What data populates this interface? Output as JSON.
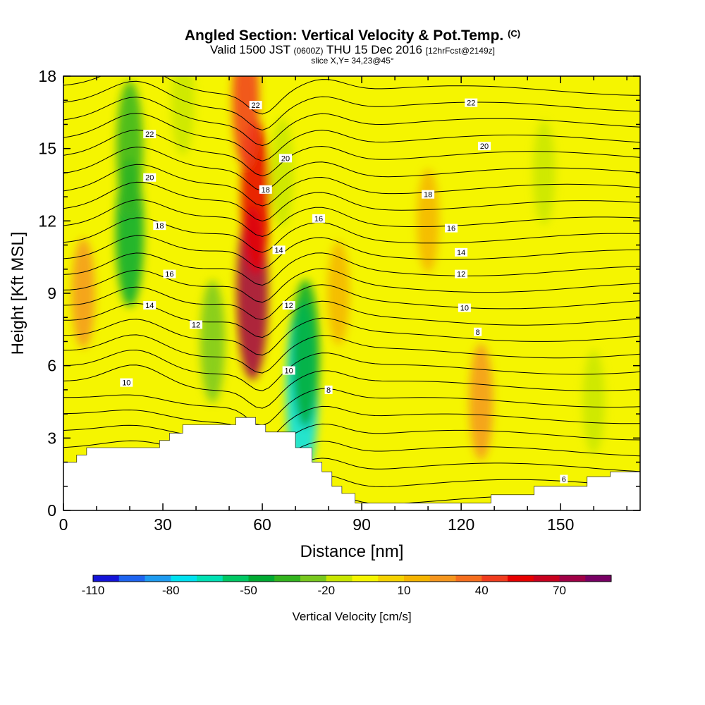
{
  "title": {
    "main": "Angled Section: Vertical Velocity & Pot.Temp.",
    "unit": "(C)",
    "valid_prefix": "Valid 1500 JST",
    "valid_utc": "(0600Z)",
    "valid_date": "THU 15 Dec 2016",
    "forecast": "[12hrFcst@2149z]",
    "slice": "slice X,Y= 34,23@45°"
  },
  "chart_data": {
    "type": "heatmap",
    "title": "Angled Section: Vertical Velocity & Pot.Temp. (C)",
    "xlabel": "Distance [nm]",
    "ylabel": "Height [Kft MSL]",
    "xlim": [
      0,
      174
    ],
    "ylim": [
      0,
      18
    ],
    "x_ticks": [
      0,
      30,
      60,
      90,
      120,
      150
    ],
    "y_ticks": [
      0,
      3,
      6,
      9,
      12,
      15,
      18
    ],
    "colorbar": {
      "label": "Vertical Velocity [cm/s]",
      "min": -110,
      "step": 10,
      "tick_labels": [
        -110,
        -80,
        -50,
        -20,
        10,
        40,
        70
      ],
      "colors": [
        "#1414d8",
        "#1e64f0",
        "#1e9bf0",
        "#00e1f0",
        "#00e1b4",
        "#00c864",
        "#00aa32",
        "#32b41e",
        "#78c81e",
        "#c8e600",
        "#f5f500",
        "#f5d200",
        "#f5b400",
        "#f5961e",
        "#f56e1e",
        "#f03c1e",
        "#e60000",
        "#c8001e",
        "#a00046",
        "#780064"
      ]
    },
    "terrain_kft": [
      [
        0,
        2
      ],
      [
        4,
        2
      ],
      [
        4,
        2.3
      ],
      [
        7,
        2.3
      ],
      [
        7,
        2.6
      ],
      [
        24,
        2.6
      ],
      [
        24,
        2.6
      ],
      [
        29,
        2.6
      ],
      [
        29,
        2.9
      ],
      [
        32,
        2.9
      ],
      [
        32,
        3.2
      ],
      [
        36,
        3.2
      ],
      [
        36,
        3.55
      ],
      [
        52,
        3.55
      ],
      [
        52,
        3.85
      ],
      [
        58,
        3.85
      ],
      [
        58,
        3.55
      ],
      [
        61,
        3.55
      ],
      [
        61,
        3.25
      ],
      [
        70,
        3.25
      ],
      [
        70,
        2.6
      ],
      [
        75,
        2.6
      ],
      [
        75,
        2.0
      ],
      [
        78,
        2.0
      ],
      [
        78,
        1.6
      ],
      [
        81,
        1.6
      ],
      [
        81,
        1.0
      ],
      [
        84,
        1.0
      ],
      [
        84,
        0.7
      ],
      [
        88,
        0.7
      ],
      [
        88,
        0.3
      ],
      [
        129,
        0.3
      ],
      [
        129,
        0.65
      ],
      [
        142,
        0.65
      ],
      [
        142,
        1.0
      ],
      [
        158,
        1.0
      ],
      [
        158,
        1.4
      ],
      [
        165,
        1.4
      ],
      [
        165,
        1.6
      ],
      [
        174,
        1.6
      ]
    ],
    "velocity_features": [
      {
        "x": 20,
        "z": 11.5,
        "value": -50
      },
      {
        "x": 20,
        "z": 15,
        "value": -40
      },
      {
        "x": 45,
        "z": 7,
        "value": -30
      },
      {
        "x": 57,
        "z": 9,
        "value": 70
      },
      {
        "x": 58,
        "z": 13,
        "value": 55
      },
      {
        "x": 55,
        "z": 17,
        "value": 40
      },
      {
        "x": 72,
        "z": 5,
        "value": -75
      },
      {
        "x": 73,
        "z": 6.5,
        "value": -50
      },
      {
        "x": 66,
        "z": 14,
        "value": -20
      },
      {
        "x": 83,
        "z": 9,
        "value": 15
      },
      {
        "x": 110,
        "z": 12,
        "value": 15
      },
      {
        "x": 126,
        "z": 4.5,
        "value": 25
      },
      {
        "x": 160,
        "z": 4.5,
        "value": -15
      },
      {
        "x": 145,
        "z": 14,
        "value": -15
      },
      {
        "x": 36,
        "z": 17,
        "value": -20
      },
      {
        "x": 6,
        "z": 9,
        "value": 20
      }
    ],
    "contour_labels": [
      {
        "text": "22",
        "x": 26,
        "z": 15.6
      },
      {
        "text": "20",
        "x": 26,
        "z": 13.8
      },
      {
        "text": "18",
        "x": 29,
        "z": 11.8
      },
      {
        "text": "16",
        "x": 32,
        "z": 9.8
      },
      {
        "text": "14",
        "x": 26,
        "z": 8.5
      },
      {
        "text": "12",
        "x": 40,
        "z": 7.7
      },
      {
        "text": "10",
        "x": 19,
        "z": 5.3
      },
      {
        "text": "22",
        "x": 58,
        "z": 16.8
      },
      {
        "text": "20",
        "x": 67,
        "z": 14.6
      },
      {
        "text": "18",
        "x": 61,
        "z": 13.3
      },
      {
        "text": "16",
        "x": 77,
        "z": 12.1
      },
      {
        "text": "14",
        "x": 65,
        "z": 10.8
      },
      {
        "text": "12",
        "x": 68,
        "z": 8.5
      },
      {
        "text": "10",
        "x": 68,
        "z": 5.8
      },
      {
        "text": "8",
        "x": 80,
        "z": 5.0
      },
      {
        "text": "22",
        "x": 123,
        "z": 16.9
      },
      {
        "text": "20",
        "x": 127,
        "z": 15.1
      },
      {
        "text": "18",
        "x": 110,
        "z": 13.1
      },
      {
        "text": "16",
        "x": 117,
        "z": 11.7
      },
      {
        "text": "14",
        "x": 120,
        "z": 10.7
      },
      {
        "text": "12",
        "x": 120,
        "z": 9.8
      },
      {
        "text": "10",
        "x": 121,
        "z": 8.4
      },
      {
        "text": "8",
        "x": 125,
        "z": 7.4
      },
      {
        "text": "6",
        "x": 151,
        "z": 1.3
      }
    ]
  }
}
